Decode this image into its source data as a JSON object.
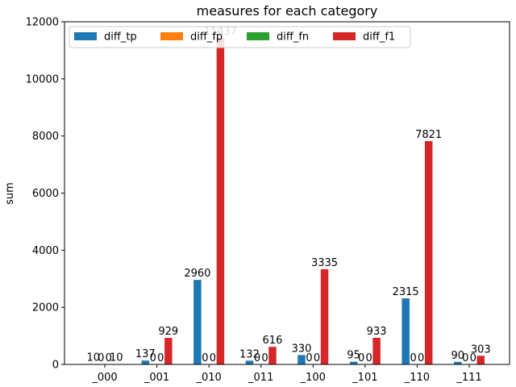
{
  "chart_data": {
    "type": "bar",
    "title": "measures for each category",
    "xlabel": "",
    "ylabel": "sum",
    "ylim": [
      0,
      12000
    ],
    "yticks": [
      0,
      2000,
      4000,
      6000,
      8000,
      10000,
      12000
    ],
    "grid": false,
    "legend_position": "top",
    "legend_columns": 4,
    "categories": [
      "_000",
      "_001",
      "_010",
      "_011",
      "_100",
      "_101",
      "_110",
      "_111"
    ],
    "series": [
      {
        "name": "diff_tp",
        "color": "#1f77b4",
        "values": [
          10,
          137,
          2960,
          132,
          330,
          95,
          2315,
          90
        ]
      },
      {
        "name": "diff_fp",
        "color": "#ff7f0e",
        "values": [
          0,
          0,
          0,
          0,
          0,
          0,
          0,
          0
        ]
      },
      {
        "name": "diff_fn",
        "color": "#2ca02c",
        "values": [
          0,
          0,
          0,
          0,
          0,
          0,
          0,
          0
        ]
      },
      {
        "name": "diff_f1",
        "color": "#d62728",
        "values": [
          10,
          929,
          11437,
          616,
          3335,
          933,
          7821,
          303
        ]
      }
    ]
  }
}
